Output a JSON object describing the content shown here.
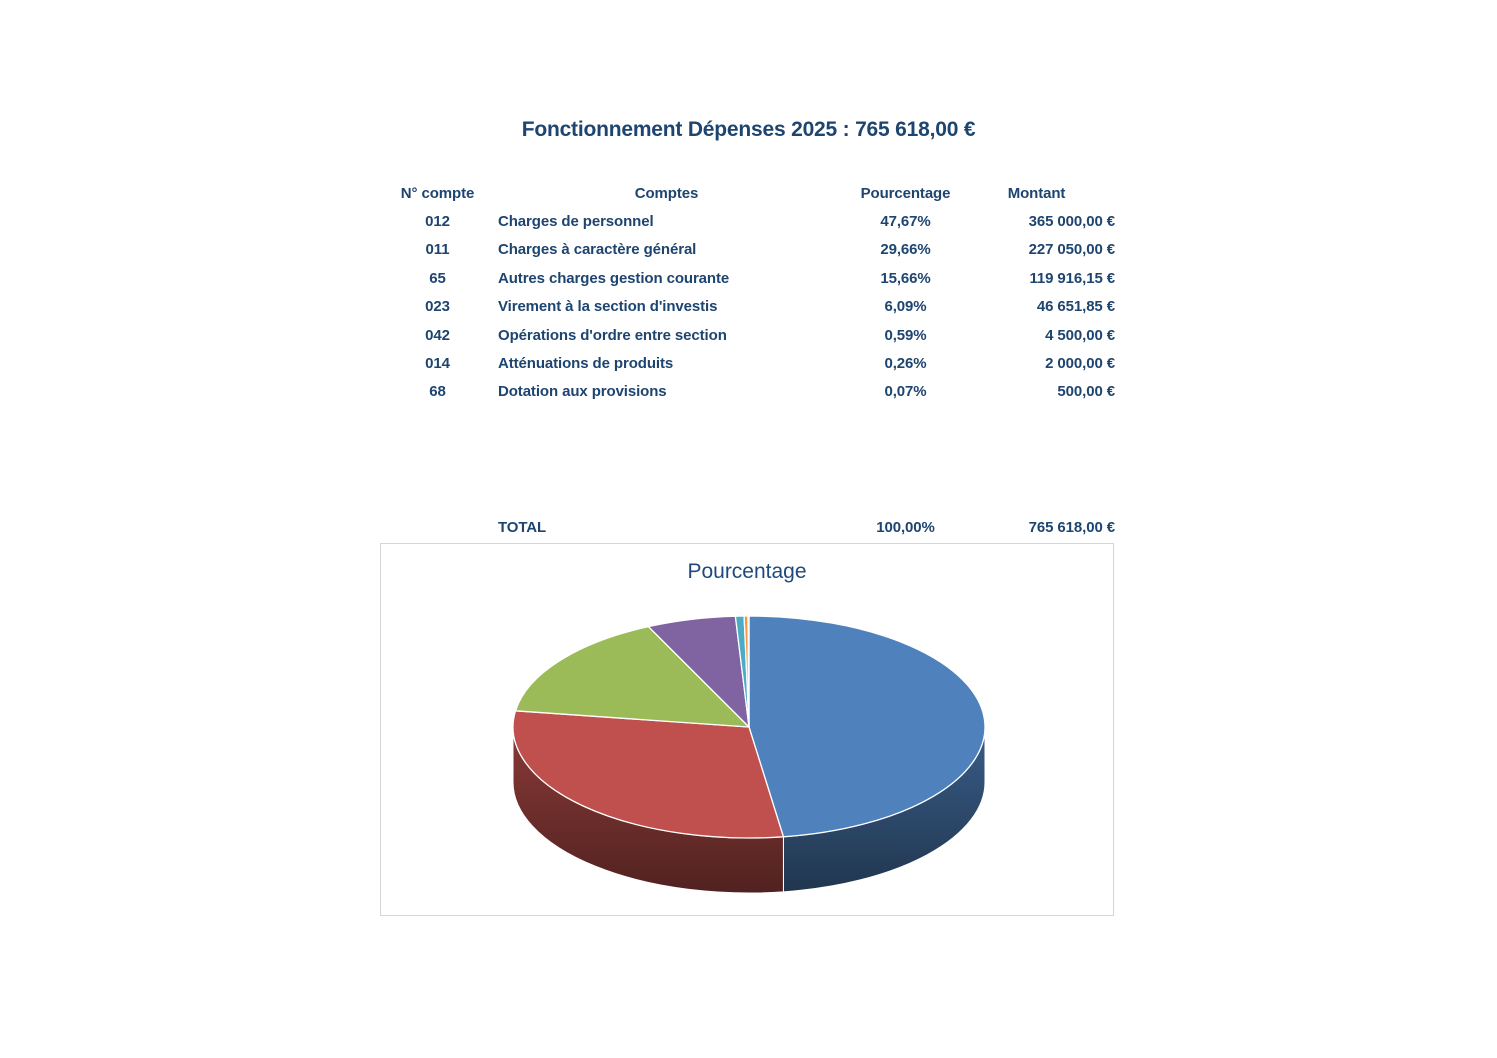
{
  "page": {
    "title": "Fonctionnement Dépenses 2025 : 765 618,00 €"
  },
  "table": {
    "headers": [
      "N° compte",
      "Comptes",
      "Pourcentage",
      "Montant"
    ],
    "rows": [
      {
        "compte": "012",
        "label": "Charges de personnel",
        "pct": "47,67%",
        "montant": "365 000,00 €"
      },
      {
        "compte": "011",
        "label": "Charges à caractère général",
        "pct": "29,66%",
        "montant": "227 050,00 €"
      },
      {
        "compte": "65",
        "label": "Autres charges gestion courante",
        "pct": "15,66%",
        "montant": "119 916,15 €"
      },
      {
        "compte": "023",
        "label": "Virement à la section d'investis",
        "pct": "6,09%",
        "montant": "46 651,85 €"
      },
      {
        "compte": "042",
        "label": "Opérations d'ordre entre section",
        "pct": "0,59%",
        "montant": "4 500,00 €"
      },
      {
        "compte": "014",
        "label": "Atténuations de produits",
        "pct": "0,26%",
        "montant": "2 000,00 €"
      },
      {
        "compte": "68",
        "label": "Dotation aux provisions",
        "pct": "0,07%",
        "montant": "500,00 €"
      }
    ],
    "total": {
      "label": "TOTAL",
      "pct": "100,00%",
      "montant": "765 618,00 €"
    }
  },
  "chart_data": {
    "type": "pie",
    "style": "3d",
    "title": "Pourcentage",
    "legend": "none",
    "start_angle_deg": 0,
    "direction": "clockwise",
    "labels": [
      "Charges de personnel",
      "Charges à caractère général",
      "Autres charges gestion courante",
      "Virement à la section d'investis",
      "Opérations d'ordre entre section",
      "Atténuations de produits",
      "Dotation aux provisions"
    ],
    "values": [
      47.67,
      29.66,
      15.66,
      6.09,
      0.59,
      0.26,
      0.07
    ],
    "colors": [
      "#4F81BD",
      "#C0504D",
      "#9BBB59",
      "#8064A2",
      "#4BACC6",
      "#F79646",
      "#2C4D75"
    ],
    "text_color": "#1E4470",
    "title_color": "#1F497D"
  }
}
